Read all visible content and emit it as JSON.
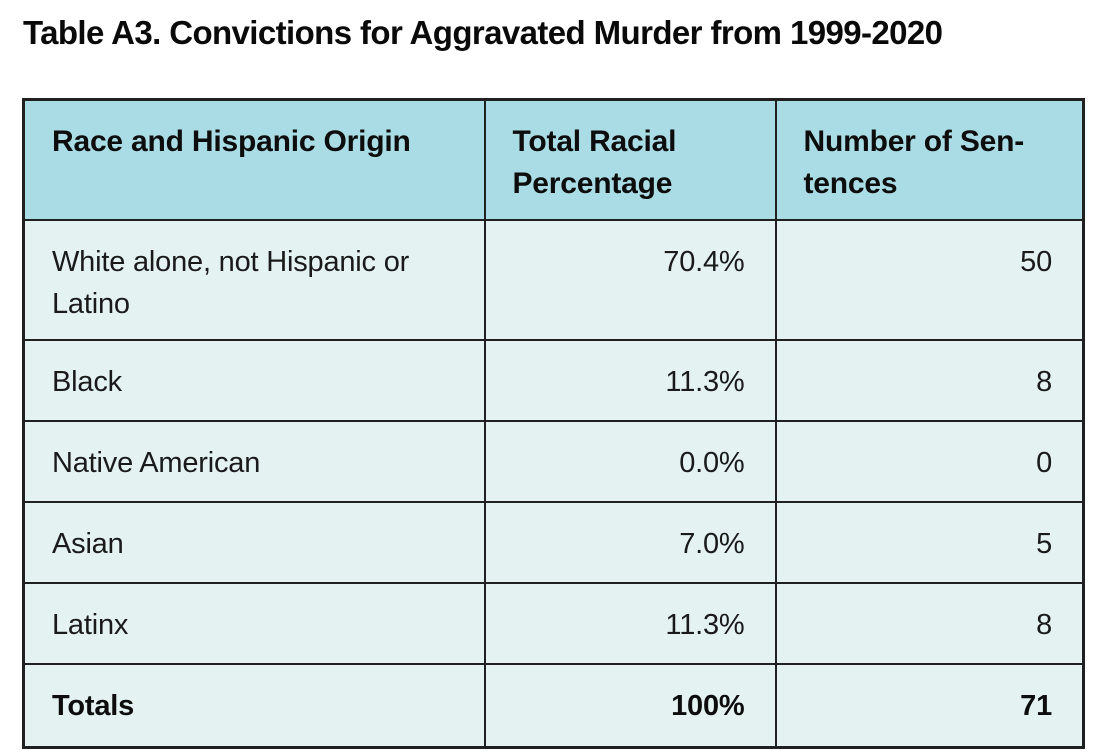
{
  "title": "Table A3. Convictions for Aggravated Murder from 1999-2020",
  "colors": {
    "header_bg": "#a9dce4",
    "row_bg": "#e4f3f2",
    "border": "#202020",
    "text": "#111111"
  },
  "table": {
    "columns": [
      {
        "label": "Race and Hispanic Origin"
      },
      {
        "label": "Total Racial\nPercentage"
      },
      {
        "label": "Number of Sen-\ntences"
      }
    ],
    "rows": [
      {
        "race": "White alone, not Hispanic or\nLatino",
        "percentage": "70.4%",
        "sentences": "50"
      },
      {
        "race": "Black",
        "percentage": "11.3%",
        "sentences": "8"
      },
      {
        "race": "Native American",
        "percentage": "0.0%",
        "sentences": "0"
      },
      {
        "race": "Asian",
        "percentage": "7.0%",
        "sentences": "5"
      },
      {
        "race": "Latinx",
        "percentage": "11.3%",
        "sentences": "8"
      }
    ],
    "totals": {
      "label": "Totals",
      "percentage": "100%",
      "sentences": "71"
    }
  },
  "chart_data": {
    "type": "table",
    "title": "Table A3. Convictions for Aggravated Murder from 1999-2020",
    "columns": [
      "Race and Hispanic Origin",
      "Total Racial Percentage",
      "Number of Sentences"
    ],
    "rows": [
      [
        "White alone, not Hispanic or Latino",
        "70.4%",
        50
      ],
      [
        "Black",
        "11.3%",
        8
      ],
      [
        "Native American",
        "0.0%",
        0
      ],
      [
        "Asian",
        "7.0%",
        5
      ],
      [
        "Latinx",
        "11.3%",
        8
      ],
      [
        "Totals",
        "100%",
        71
      ]
    ]
  }
}
